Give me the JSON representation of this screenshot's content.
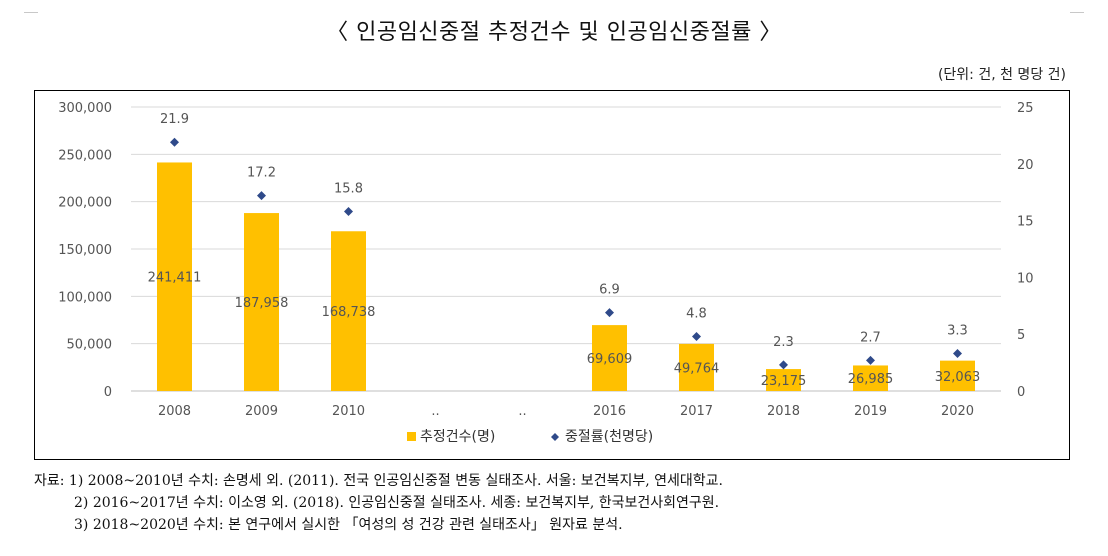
{
  "title": "〈 인공임신중절 추정건수 및 인공임신중절률 〉",
  "unit": "(단위: 건, 천 명당 건)",
  "colors": {
    "bar": "#FFC000",
    "marker": "#2F4A8A",
    "grid": "#d9d9d9",
    "axis_text": "#555555"
  },
  "chart_data": {
    "type": "bar",
    "categories": [
      "2008",
      "2009",
      "2010",
      "..",
      "..",
      "2016",
      "2017",
      "2018",
      "2019",
      "2020"
    ],
    "series": [
      {
        "name": "추정건수(명)",
        "type": "bar",
        "axis": "left",
        "values": [
          241411,
          187958,
          168738,
          null,
          null,
          69609,
          49764,
          23175,
          26985,
          32063
        ],
        "labels": [
          "241,411",
          "187,958",
          "168,738",
          "",
          "",
          "69,609",
          "49,764",
          "23,175",
          "26,985",
          "32,063"
        ]
      },
      {
        "name": "중절률(천명당)",
        "type": "scatter",
        "axis": "right",
        "values": [
          21.9,
          17.2,
          15.8,
          null,
          null,
          6.9,
          4.8,
          2.3,
          2.7,
          3.3
        ],
        "labels": [
          "21.9",
          "17.2",
          "15.8",
          "",
          "",
          "6.9",
          "4.8",
          "2.3",
          "2.7",
          "3.3"
        ]
      }
    ],
    "y_left": {
      "ylim": [
        0,
        300000
      ],
      "ticks": [
        "0",
        "50,000",
        "100,000",
        "150,000",
        "200,000",
        "250,000",
        "300,000"
      ]
    },
    "y_right": {
      "ylim": [
        0,
        25
      ],
      "ticks": [
        "0",
        "5",
        "10",
        "15",
        "20",
        "25"
      ]
    },
    "grid": true,
    "legend_position": "bottom"
  },
  "notes": [
    "자료: 1) 2008~2010년 수치: 손명세 외. (2011). 전국 인공임신중절 변동 실태조사. 서울: 보건복지부, 연세대학교.",
    "2) 2016~2017년 수치: 이소영 외. (2018). 인공임신중절 실태조사. 세종: 보건복지부, 한국보건사회연구원.",
    "3) 2018~2020년 수치: 본 연구에서 실시한 「여성의 성 건강 관련 실태조사」 원자료 분석."
  ]
}
